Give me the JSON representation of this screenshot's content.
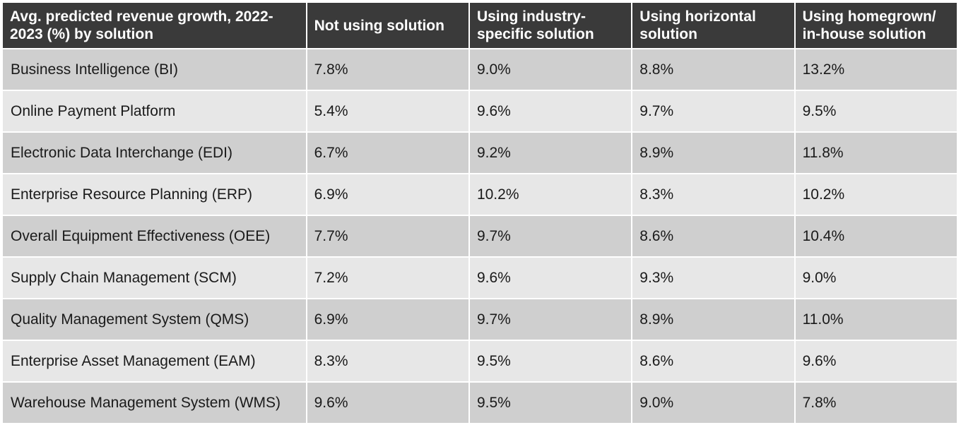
{
  "chart_data": {
    "type": "table",
    "columns": [
      "Avg. predicted revenue growth, 2022-2023 (%) by solution",
      "Not using solution",
      "Using industry-specific solution",
      "Using horizontal solution",
      "Using homegrown/ in-house solution"
    ],
    "header_lines": [
      [
        "Avg. predicted revenue growth, 2022-",
        "2023 (%) by solution"
      ],
      [
        "Not using solution"
      ],
      [
        "Using industry-",
        "specific solution"
      ],
      [
        "Using horizontal",
        "solution"
      ],
      [
        "Using homegrown/",
        "in-house solution"
      ]
    ],
    "rows": [
      {
        "name": "Business Intelligence (BI)",
        "values": [
          "7.8%",
          "9.0%",
          "8.8%",
          "13.2%"
        ]
      },
      {
        "name": "Online Payment Platform",
        "values": [
          "5.4%",
          "9.6%",
          "9.7%",
          "9.5%"
        ]
      },
      {
        "name": "Electronic Data Interchange (EDI)",
        "values": [
          "6.7%",
          "9.2%",
          "8.9%",
          "11.8%"
        ]
      },
      {
        "name": "Enterprise Resource Planning (ERP)",
        "values": [
          "6.9%",
          "10.2%",
          "8.3%",
          "10.2%"
        ]
      },
      {
        "name": "Overall Equipment Effectiveness (OEE)",
        "values": [
          "7.7%",
          "9.7%",
          "8.6%",
          "10.4%"
        ]
      },
      {
        "name": "Supply Chain Management (SCM)",
        "values": [
          "7.2%",
          "9.6%",
          "9.3%",
          "9.0%"
        ]
      },
      {
        "name": "Quality Management System (QMS)",
        "values": [
          "6.9%",
          "9.7%",
          "8.9%",
          "11.0%"
        ]
      },
      {
        "name": "Enterprise Asset Management (EAM)",
        "values": [
          "8.3%",
          "9.5%",
          "8.6%",
          "9.6%"
        ]
      },
      {
        "name": "Warehouse Management System (WMS)",
        "values": [
          "9.6%",
          "9.5%",
          "9.0%",
          "7.8%"
        ]
      }
    ]
  },
  "colors": {
    "header_bg": "#3a3a3a",
    "header_text": "#ffffff",
    "row_dark": "#cfcfcf",
    "row_light": "#e7e7e7",
    "cell_text": "#1a1a1a"
  }
}
